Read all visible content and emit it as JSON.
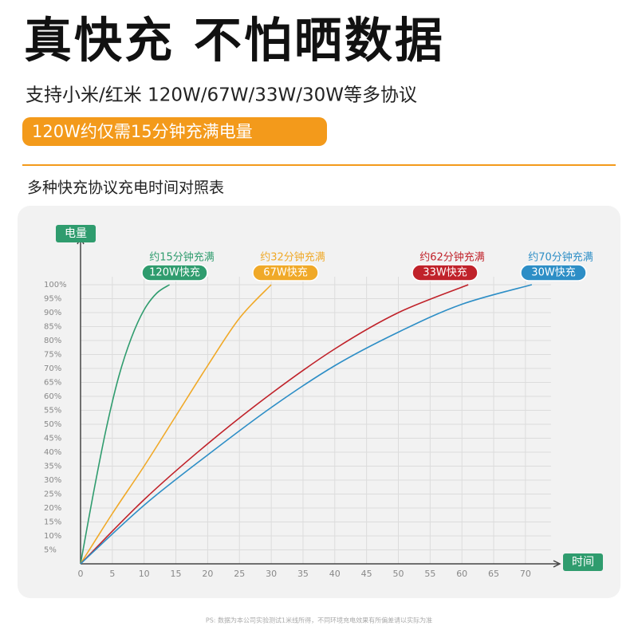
{
  "title": "真快充 不怕晒数据",
  "subtitle": "支持小米/红米 120W/67W/33W/30W等多协议",
  "badge": "120W约仅需15分钟充满电量",
  "section_title": "多种快充协议充电时间对照表",
  "footnote": "PS: 数据为本公司实验测试1米线所得，不同环境充电效果有所偏差请以实际为准",
  "chart_data": {
    "type": "line",
    "y_label": "电量",
    "x_label": "时间",
    "xlim": [
      0,
      74
    ],
    "ylim": [
      0,
      100
    ],
    "xticks": [
      0,
      5,
      10,
      15,
      20,
      25,
      30,
      35,
      40,
      45,
      50,
      55,
      60,
      65,
      70
    ],
    "yticks": [
      {
        "value": 5,
        "label": "5%"
      },
      {
        "value": 10,
        "label": "10%"
      },
      {
        "value": 15,
        "label": "15%"
      },
      {
        "value": 20,
        "label": "20%"
      },
      {
        "value": 25,
        "label": "25%"
      },
      {
        "value": 30,
        "label": "30%"
      },
      {
        "value": 35,
        "label": "35%"
      },
      {
        "value": 40,
        "label": "40%"
      },
      {
        "value": 45,
        "label": "45%"
      },
      {
        "value": 50,
        "label": "50%"
      },
      {
        "value": 55,
        "label": "55%"
      },
      {
        "value": 60,
        "label": "60%"
      },
      {
        "value": 65,
        "label": "65%"
      },
      {
        "value": 70,
        "label": "70%"
      },
      {
        "value": 75,
        "label": "75%"
      },
      {
        "value": 80,
        "label": "80%"
      },
      {
        "value": 85,
        "label": "85%"
      },
      {
        "value": 90,
        "label": "90%"
      },
      {
        "value": 95,
        "label": "95%"
      },
      {
        "value": 100,
        "label": "100%"
      }
    ],
    "grid": true,
    "series": [
      {
        "name": "120W快充",
        "annotation": "约15分钟充满",
        "color": "#2f9c6e",
        "x": [
          0,
          2,
          4,
          6,
          8,
          10,
          12,
          14
        ],
        "values": [
          0,
          25,
          48,
          67,
          81,
          91,
          97,
          100
        ]
      },
      {
        "name": "67W快充",
        "annotation": "约32分钟充满",
        "color": "#f0a928",
        "x": [
          0,
          5,
          10,
          15,
          20,
          25,
          30
        ],
        "values": [
          0,
          18,
          35,
          53,
          71,
          88,
          100
        ]
      },
      {
        "name": "33W快充",
        "annotation": "约62分钟充满",
        "color": "#c0222a",
        "x": [
          0,
          10,
          20,
          30,
          40,
          50,
          61
        ],
        "values": [
          0,
          23,
          43,
          61,
          77,
          90,
          100
        ]
      },
      {
        "name": "30W快充",
        "annotation": "约70分钟充满",
        "color": "#2d8ec6",
        "x": [
          0,
          10,
          20,
          30,
          40,
          50,
          60,
          71
        ],
        "values": [
          0,
          21,
          39,
          56,
          71,
          83,
          93,
          100
        ]
      }
    ]
  }
}
